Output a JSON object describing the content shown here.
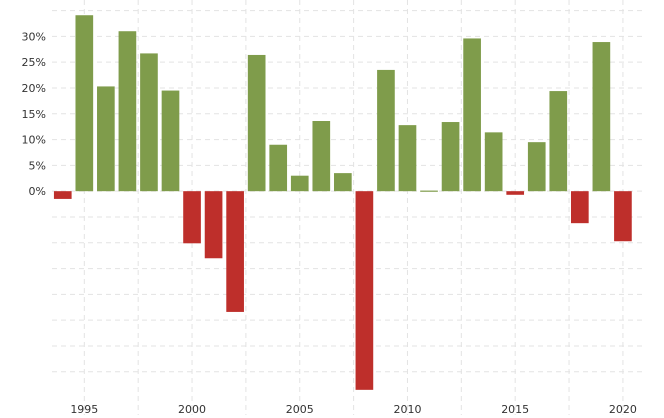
{
  "chart_data": {
    "type": "bar",
    "x": [
      1994,
      1995,
      1996,
      1997,
      1998,
      1999,
      2000,
      2001,
      2002,
      2003,
      2004,
      2005,
      2006,
      2007,
      2008,
      2009,
      2010,
      2011,
      2012,
      2013,
      2014,
      2015,
      2016,
      2017,
      2018,
      2019,
      2020
    ],
    "values": [
      -1.5,
      34.1,
      20.3,
      31.0,
      26.7,
      19.5,
      -10.1,
      -13.0,
      -23.4,
      26.4,
      9.0,
      3.0,
      13.6,
      3.5,
      -38.5,
      23.5,
      12.8,
      0.0,
      13.4,
      29.6,
      11.4,
      -0.7,
      9.5,
      19.4,
      -6.2,
      28.9,
      -9.7
    ],
    "title": "",
    "xlabel": "",
    "ylabel": "",
    "ylim": [
      -39.5,
      35.5
    ],
    "xlim": [
      1993.5,
      2020.7
    ],
    "yticks": [
      0,
      5,
      10,
      15,
      20,
      25,
      30
    ],
    "ytick_labels": [
      "0%",
      "5%",
      "10%",
      "15%",
      "20%",
      "25%",
      "30%"
    ],
    "xticks": [
      1995,
      2000,
      2005,
      2010,
      2015,
      2020
    ],
    "xtick_labels": [
      "1995",
      "2000",
      "2005",
      "2010",
      "2015",
      "2020"
    ],
    "grid": true,
    "legend": "none",
    "colors": {
      "positive": "#7f9c4b",
      "negative": "#be2f2b",
      "grid": "#e3e3e3"
    }
  }
}
